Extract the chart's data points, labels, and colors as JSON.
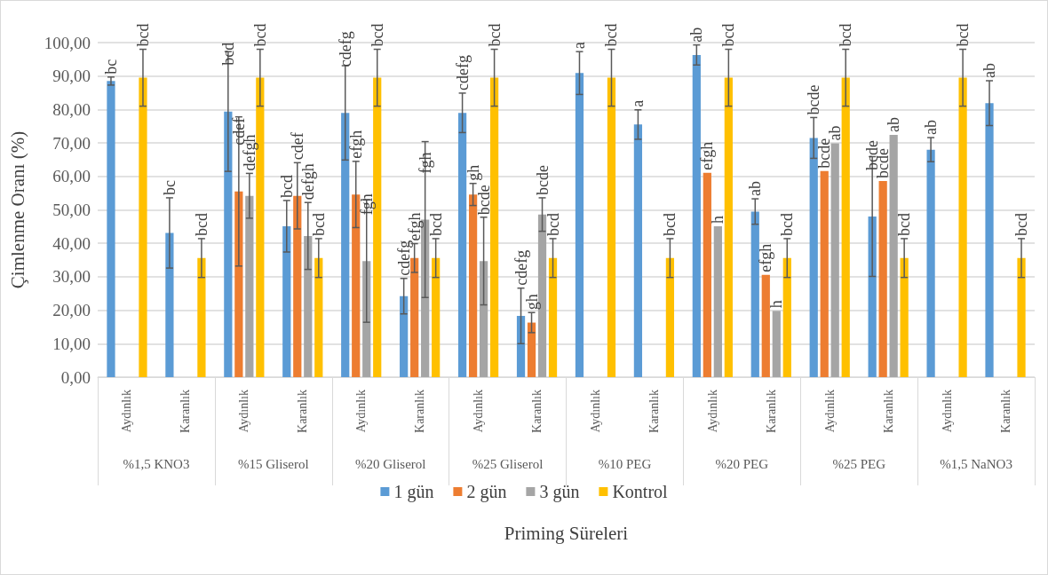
{
  "chart_data": {
    "type": "bar",
    "xlabel": "Priming Süreleri",
    "ylabel": "Çimlenme Oranı (%)",
    "categories": [
      "Aydınlık",
      "Karanlık",
      "Aydınlık",
      "Karanlık",
      "Aydınlık",
      "Karanlık",
      "Aydınlık",
      "Karanlık",
      "Aydınlık",
      "Karanlık",
      "Aydınlık",
      "Karanlık",
      "Aydınlık",
      "Karanlık",
      "Aydınlık",
      "Karanlık"
    ],
    "annotations": [
      "%1,5 KNO3",
      "%15 Gliserol",
      "%20 Gliserol",
      "%25 Gliserol",
      "%10 PEG",
      "%20 PEG",
      "%25 PEG",
      "%1,5 NaNO3"
    ],
    "series": [
      {
        "name": "1 gün",
        "color": "#5b9bd5",
        "values": [
          88.5,
          43.1,
          79.4,
          45.1,
          79.0,
          24.2,
          79.0,
          18.3,
          90.9,
          75.5,
          96.3,
          49.5,
          71.5,
          48.0,
          68.0,
          81.9
        ],
        "errors": [
          1.2,
          10.5,
          17.9,
          7.7,
          14.1,
          5.3,
          5.9,
          8.3,
          6.4,
          4.4,
          3.0,
          3.8,
          6.1,
          17.9,
          3.6,
          6.7
        ],
        "value_labels": [
          "bc",
          "bc",
          "bcd",
          "bcd",
          "cdefg",
          "cdefg",
          "cdefg",
          "cdefg",
          "a",
          "a",
          "ab",
          "ab",
          "bcde",
          "bcde",
          "ab",
          "ab"
        ]
      },
      {
        "name": "2 gün",
        "color": "#ed7d31",
        "values": [
          null,
          null,
          55.5,
          54.2,
          54.6,
          35.6,
          54.6,
          16.3,
          null,
          null,
          61.1,
          30.6,
          61.6,
          58.6,
          null,
          null
        ],
        "errors": [
          null,
          null,
          22.3,
          9.9,
          9.9,
          4.3,
          3.3,
          3.0,
          null,
          null,
          null,
          null,
          null,
          null,
          null,
          null
        ],
        "value_labels": [
          null,
          null,
          "cdef",
          "cdef",
          "efgh",
          "efgh",
          "gh",
          "gh",
          null,
          null,
          "efgh",
          "efgh",
          "bcde",
          "bcde",
          null,
          null
        ]
      },
      {
        "name": "3 gün",
        "color": "#a5a5a5",
        "values": [
          null,
          null,
          54.2,
          42.2,
          34.7,
          47.1,
          34.7,
          48.6,
          null,
          null,
          45.1,
          19.8,
          69.9,
          72.4,
          null,
          null
        ],
        "errors": [
          null,
          null,
          6.7,
          10.0,
          18.3,
          23.3,
          13.1,
          5.0,
          null,
          null,
          null,
          null,
          null,
          null,
          null,
          null
        ],
        "value_labels": [
          null,
          null,
          "defgh",
          "defgh",
          "fgh",
          "fgh",
          "bcde",
          "bcde",
          null,
          null,
          "h",
          "h",
          "ab",
          "ab",
          null,
          null
        ]
      },
      {
        "name": "Kontrol",
        "color": "#ffc000",
        "values": [
          89.5,
          35.6,
          89.5,
          35.6,
          89.5,
          35.6,
          89.5,
          35.6,
          89.5,
          35.6,
          89.5,
          35.6,
          89.5,
          35.6,
          89.5,
          35.6
        ],
        "errors": [
          8.5,
          5.8,
          8.5,
          5.8,
          8.5,
          5.8,
          8.5,
          5.8,
          8.5,
          5.8,
          8.5,
          5.8,
          8.5,
          5.8,
          8.5,
          5.8
        ],
        "value_labels": [
          "bcd",
          "bcd",
          "bcd",
          "bcd",
          "bcd",
          "bcd",
          "bcd",
          "bcd",
          "bcd",
          "bcd",
          "bcd",
          "bcd",
          "bcd",
          "bcd",
          "bcd",
          "bcd"
        ]
      }
    ],
    "ylim": [
      0,
      100
    ],
    "yticks": [
      {
        "value": 0,
        "label": "0,00"
      },
      {
        "value": 10,
        "label": "10,00"
      },
      {
        "value": 20,
        "label": "20,00"
      },
      {
        "value": 30,
        "label": "30,00"
      },
      {
        "value": 40,
        "label": "40,00"
      },
      {
        "value": 50,
        "label": "50,00"
      },
      {
        "value": 60,
        "label": "60,00"
      },
      {
        "value": 70,
        "label": "70,00"
      },
      {
        "value": 80,
        "label": "80,00"
      },
      {
        "value": 90,
        "label": "90,00"
      },
      {
        "value": 100,
        "label": "100,00"
      }
    ],
    "grid": "y",
    "legend": "bottom"
  }
}
